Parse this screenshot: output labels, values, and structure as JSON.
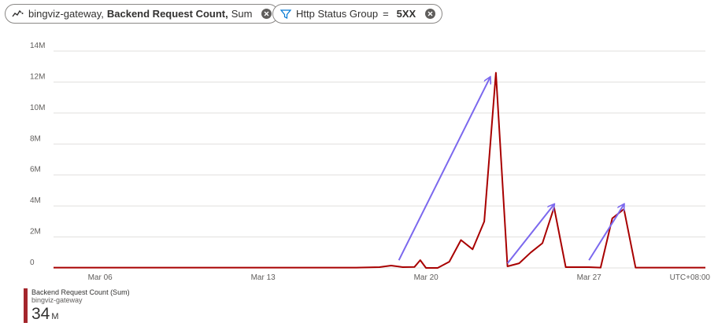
{
  "pills": {
    "metric": {
      "resource": "bingviz-gateway,",
      "metric": "Backend Request Count,",
      "aggregation": "Sum"
    },
    "filter": {
      "label": "Http Status Group",
      "operator": "=",
      "value": "5XX"
    }
  },
  "legend": {
    "title": "Backend Request Count (Sum)",
    "subtitle": "bingviz-gateway",
    "total": "34",
    "unit": "M"
  },
  "colors": {
    "series": "#a80000",
    "arrow": "#7b68ee",
    "grid": "#e1dfdd",
    "axis_text": "#605e5c"
  },
  "chart_data": {
    "type": "line",
    "title": "",
    "xlabel": "",
    "ylabel": "",
    "ylim": [
      0,
      14000000
    ],
    "y_ticks": [
      0,
      2000000,
      4000000,
      6000000,
      8000000,
      10000000,
      12000000,
      14000000
    ],
    "y_tick_labels": [
      "0",
      "2M",
      "4M",
      "6M",
      "8M",
      "10M",
      "12M",
      "14M"
    ],
    "xlim": [
      "2021-03-04",
      "2021-04-01"
    ],
    "x_ticks": [
      "2021-03-06",
      "2021-03-13",
      "2021-03-20",
      "2021-03-27"
    ],
    "x_tick_labels": [
      "Mar 06",
      "Mar 13",
      "Mar 20",
      "Mar 27"
    ],
    "timezone_label": "UTC+08:00",
    "grid": true,
    "series": [
      {
        "name": "Backend Request Count (Sum)",
        "x": [
          "2021-03-04",
          "2021-03-05",
          "2021-03-06",
          "2021-03-07",
          "2021-03-08",
          "2021-03-09",
          "2021-03-10",
          "2021-03-11",
          "2021-03-12",
          "2021-03-13",
          "2021-03-14",
          "2021-03-15",
          "2021-03-16",
          "2021-03-17",
          "2021-03-18",
          "2021-03-18T12:00",
          "2021-03-19",
          "2021-03-19T12:00",
          "2021-03-19T18:00",
          "2021-03-20",
          "2021-03-20T12:00",
          "2021-03-21",
          "2021-03-21T12:00",
          "2021-03-22",
          "2021-03-22T12:00",
          "2021-03-23",
          "2021-03-23T12:00",
          "2021-03-24",
          "2021-03-24T12:00",
          "2021-03-25",
          "2021-03-25T12:00",
          "2021-03-26",
          "2021-03-26T12:00",
          "2021-03-27",
          "2021-03-27T12:00",
          "2021-03-28",
          "2021-03-28T12:00",
          "2021-03-29",
          "2021-03-29T12:00",
          "2021-03-30",
          "2021-03-31",
          "2021-04-01"
        ],
        "values": [
          20000,
          20000,
          20000,
          20000,
          20000,
          20000,
          20000,
          20000,
          20000,
          20000,
          20000,
          20000,
          20000,
          20000,
          50000,
          150000,
          50000,
          60000,
          500000,
          0,
          0,
          400000,
          1800000,
          1200000,
          3000000,
          12600000,
          100000,
          300000,
          1000000,
          1600000,
          3900000,
          50000,
          50000,
          50000,
          20000,
          3200000,
          3800000,
          20000,
          20000,
          20000,
          20000,
          20000
        ]
      }
    ],
    "annotations": [
      {
        "type": "arrow",
        "from": [
          "2021-03-18T20:00",
          500000
        ],
        "to": [
          "2021-03-22T18:00",
          12300000
        ]
      },
      {
        "type": "arrow",
        "from": [
          "2021-03-23T12:00",
          300000
        ],
        "to": [
          "2021-03-25T12:00",
          4100000
        ]
      },
      {
        "type": "arrow",
        "from": [
          "2021-03-27T00:00",
          500000
        ],
        "to": [
          "2021-03-28T12:00",
          4100000
        ]
      }
    ]
  }
}
